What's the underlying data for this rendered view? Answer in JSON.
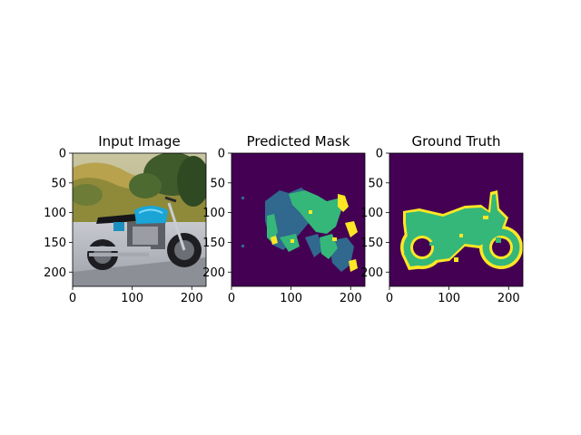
{
  "chart_data": [
    {
      "type": "image",
      "title": "Input Image",
      "image_kind": "photo",
      "subject": "blue motorcycle on road with trees and hills behind",
      "xlim": [
        0,
        224
      ],
      "ylim": [
        224,
        0
      ],
      "xticks": [
        0,
        100,
        200
      ],
      "yticks": [
        0,
        50,
        100,
        150,
        200
      ]
    },
    {
      "type": "heatmap",
      "title": "Predicted Mask",
      "colormap": "viridis",
      "background_color": "#440154",
      "region_colors": [
        "#31688e",
        "#35b779",
        "#fde725"
      ],
      "xlim": [
        0,
        224
      ],
      "ylim": [
        224,
        0
      ],
      "xticks": [
        0,
        100,
        200
      ],
      "yticks": [
        0,
        50,
        100,
        150,
        200
      ]
    },
    {
      "type": "heatmap",
      "title": "Ground Truth",
      "colormap": "viridis",
      "background_color": "#440154",
      "region_colors": [
        "#35b779",
        "#fde725"
      ],
      "xlim": [
        0,
        224
      ],
      "ylim": [
        224,
        0
      ],
      "xticks": [
        0,
        100,
        200
      ],
      "yticks": [
        0,
        50,
        100,
        150,
        200
      ]
    }
  ]
}
